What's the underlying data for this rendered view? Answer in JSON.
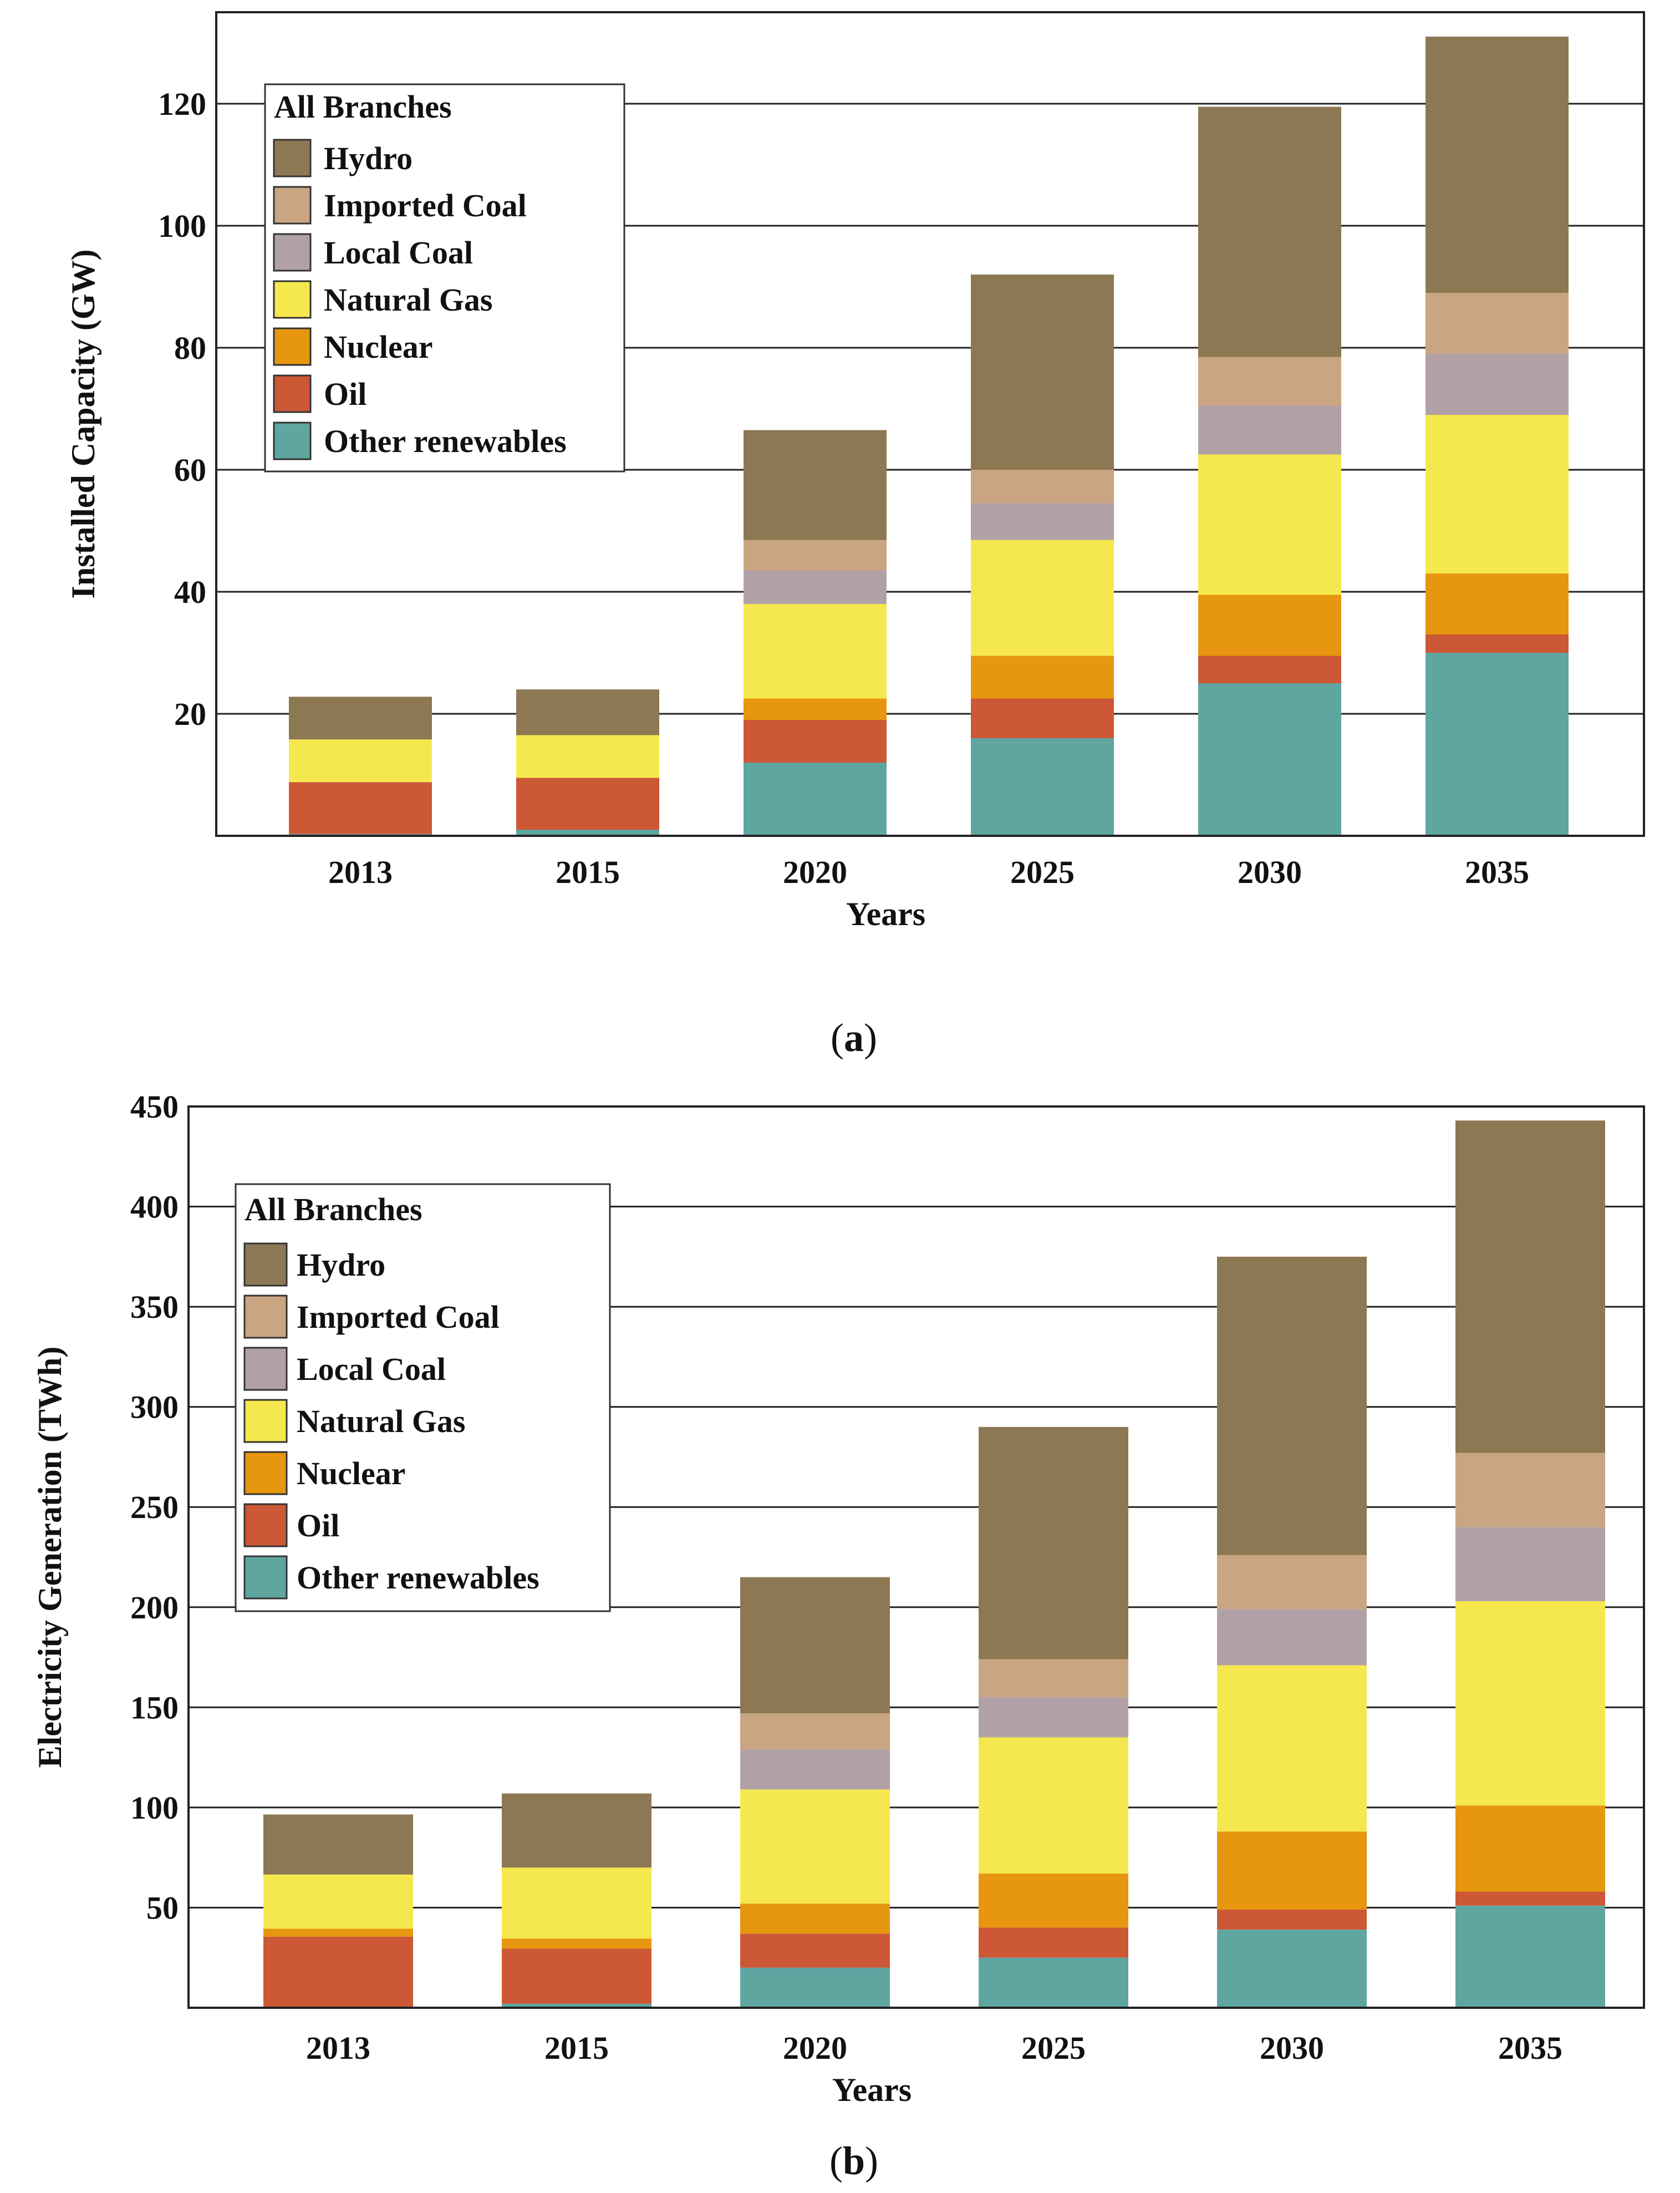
{
  "colors": {
    "Hydro": "#8c7853",
    "Imported Coal": "#c9a582",
    "Local Coal": "#b1a1a7",
    "Natural Gas": "#f5e84e",
    "Nuclear": "#e6960f",
    "Oil": "#cc5836",
    "Other renewables": "#5fa6a1"
  },
  "chart_data": [
    {
      "type": "bar",
      "stacked": true,
      "panel_caption": "(a)",
      "caption_letter": "a",
      "xlabel": "Years",
      "ylabel": "Installed Capacity (GW)",
      "ylim": [
        0,
        135
      ],
      "yticks": [
        20,
        40,
        60,
        80,
        100,
        120
      ],
      "legend_title": "All Branches",
      "legend_position": "top-left",
      "categories": [
        "2013",
        "2015",
        "2020",
        "2025",
        "2030",
        "2035"
      ],
      "series": [
        {
          "name": "Other renewables",
          "values": [
            0.3,
            1,
            12,
            16,
            25,
            30
          ]
        },
        {
          "name": "Oil",
          "values": [
            8.5,
            8.5,
            7,
            6.5,
            4.5,
            3
          ]
        },
        {
          "name": "Nuclear",
          "values": [
            0,
            0,
            3.5,
            7,
            10,
            10
          ]
        },
        {
          "name": "Natural Gas",
          "values": [
            7,
            7,
            15.5,
            19,
            23,
            26
          ]
        },
        {
          "name": "Local Coal",
          "values": [
            0,
            0,
            5.5,
            6,
            8,
            10
          ]
        },
        {
          "name": "Imported Coal",
          "values": [
            0,
            0,
            5,
            5.5,
            8,
            10
          ]
        },
        {
          "name": "Hydro",
          "values": [
            7,
            7.5,
            18,
            32,
            41,
            42
          ]
        }
      ]
    },
    {
      "type": "bar",
      "stacked": true,
      "panel_caption": "(b)",
      "caption_letter": "b",
      "xlabel": "Years",
      "ylabel": "Electricity Generation (TWh)",
      "ylim": [
        0,
        450
      ],
      "yticks": [
        50,
        100,
        150,
        200,
        250,
        300,
        350,
        400,
        450
      ],
      "legend_title": "All Branches",
      "legend_position": "top-left",
      "categories": [
        "2013",
        "2015",
        "2020",
        "2025",
        "2030",
        "2035"
      ],
      "series": [
        {
          "name": "Other renewables",
          "values": [
            0.5,
            2,
            20,
            25,
            39,
            51
          ]
        },
        {
          "name": "Oil",
          "values": [
            35,
            27.5,
            17,
            15,
            10,
            7
          ]
        },
        {
          "name": "Nuclear",
          "values": [
            4,
            5,
            15,
            27,
            39,
            43
          ]
        },
        {
          "name": "Natural Gas",
          "values": [
            27,
            35.5,
            57,
            68,
            83,
            102
          ]
        },
        {
          "name": "Local Coal",
          "values": [
            0,
            0,
            20,
            20,
            28,
            37
          ]
        },
        {
          "name": "Imported Coal",
          "values": [
            0,
            0,
            18,
            19,
            27,
            37
          ]
        },
        {
          "name": "Hydro",
          "values": [
            30,
            37,
            68,
            116,
            149,
            166
          ]
        }
      ]
    }
  ]
}
